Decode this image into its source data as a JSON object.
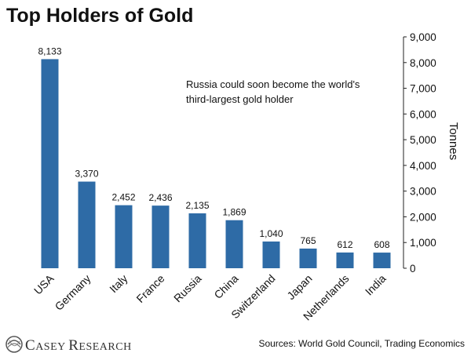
{
  "chart_data": {
    "type": "bar",
    "title": "Top Holders of Gold",
    "categories": [
      "USA",
      "Germany",
      "Italy",
      "France",
      "Russia",
      "China",
      "Switzerland",
      "Japan",
      "Netherlands",
      "India"
    ],
    "values": [
      8133,
      3370,
      2452,
      2436,
      2135,
      1869,
      1040,
      765,
      612,
      608
    ],
    "value_labels": [
      "8,133",
      "3,370",
      "2,452",
      "2,436",
      "2,135",
      "1,869",
      "1,040",
      "765",
      "612",
      "608"
    ],
    "ylabel": "Tonnes",
    "ylim": [
      0,
      9000
    ],
    "yticks": [
      "0",
      "1,000",
      "2,000",
      "3,000",
      "4,000",
      "5,000",
      "6,000",
      "7,000",
      "8,000",
      "9,000"
    ],
    "y_axis_side": "right",
    "grid": false,
    "bar_color": "#2e6ba6",
    "annotation_line1": "Russia could soon become the world's",
    "annotation_line2": "third-largest gold holder"
  },
  "footer": {
    "logo_name": "casey-research-logo",
    "logo_text_big1": "C",
    "logo_text_small1": "ASEY ",
    "logo_text_big2": "R",
    "logo_text_small2": "ESEARCH",
    "source": "Sources: World Gold Council, Trading Economics"
  }
}
